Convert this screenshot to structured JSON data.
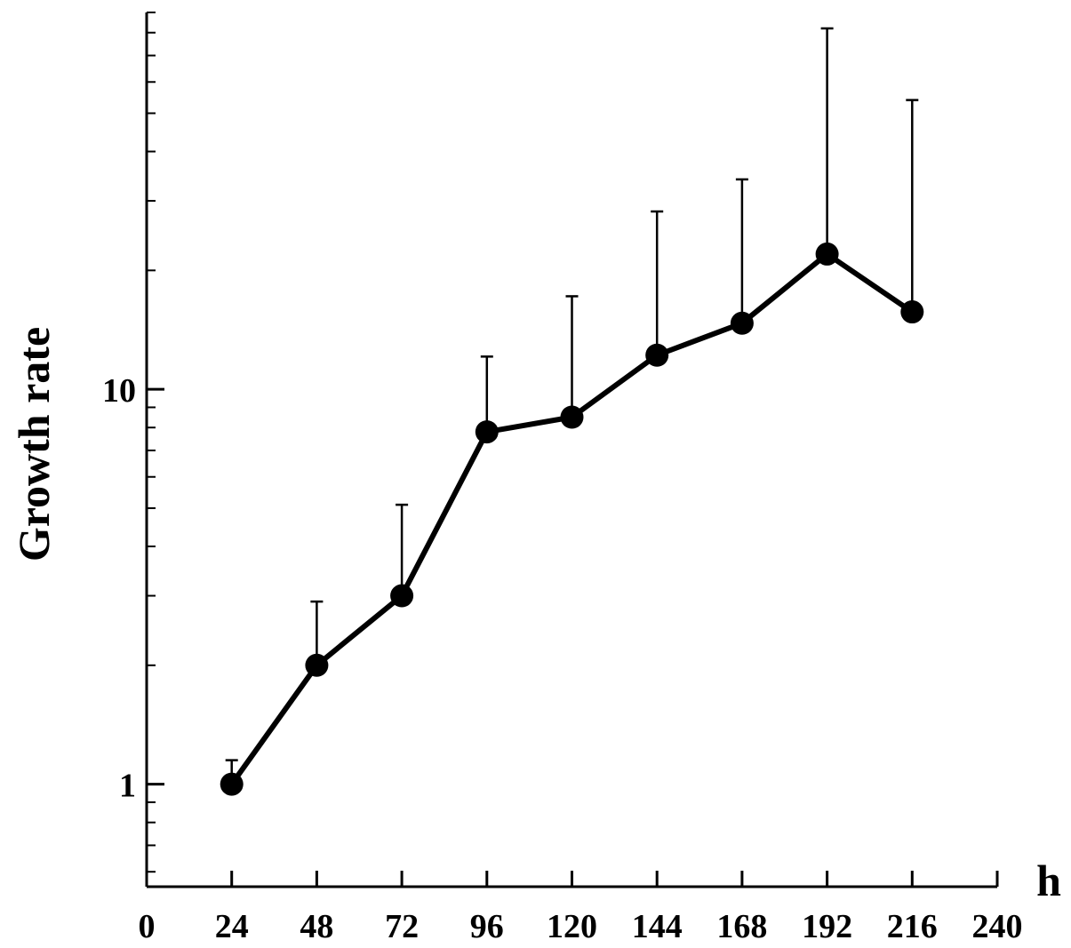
{
  "chart_data": {
    "type": "line",
    "title": "",
    "xlabel": "h",
    "ylabel": "Growth rate",
    "x_scale": "linear",
    "y_scale": "log",
    "xlim": [
      0,
      240
    ],
    "ylim": [
      0.55,
      90
    ],
    "x_ticks": [
      0,
      24,
      48,
      72,
      96,
      120,
      144,
      168,
      192,
      216,
      240
    ],
    "y_tick_labels": [
      {
        "value": 1,
        "label": "1"
      },
      {
        "value": 10,
        "label": "10"
      }
    ],
    "y_minor_ticks": [
      0.6,
      0.7,
      0.8,
      0.9,
      2,
      3,
      4,
      5,
      6,
      7,
      8,
      9,
      20,
      30,
      40,
      50,
      60,
      70,
      80,
      90
    ],
    "grid": false,
    "legend": "none",
    "series": [
      {
        "x": [
          24,
          48,
          72,
          96,
          120,
          144,
          168,
          192,
          216
        ],
        "y": [
          1.0,
          2.0,
          3.0,
          7.8,
          8.5,
          12.2,
          14.7,
          22.0,
          15.7
        ],
        "error_upper": [
          1.15,
          2.9,
          5.1,
          12.1,
          17.2,
          28.2,
          34.0,
          82.0,
          54.0
        ],
        "color": "#000000",
        "marker": "filled-circle"
      }
    ]
  }
}
